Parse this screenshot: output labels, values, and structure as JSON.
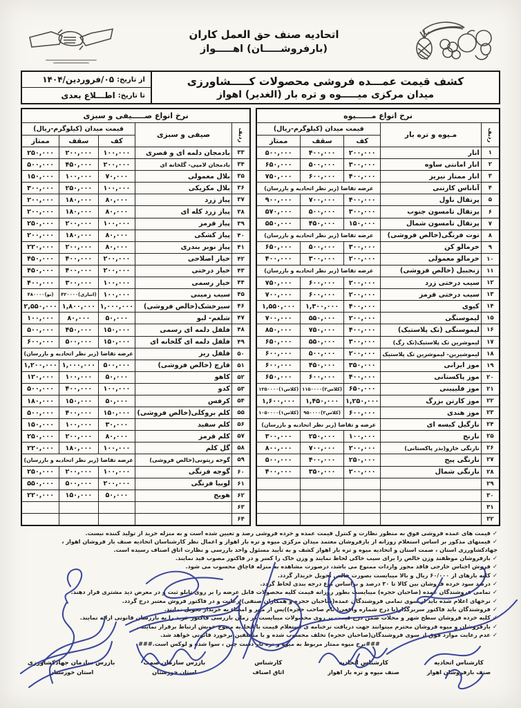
{
  "header": {
    "org_line1": "اتحادیه صنف حق العمل کاران",
    "org_line2": "(بارفروشـــــان) اهـــــواز"
  },
  "title_block": {
    "title_line1": "کشف قیمت عمـــده فروشی محصولات کـــــشاورزی",
    "title_line2": "میدان مرکزی میـــــوه و تره بار (الغدیر) اهواز",
    "date_from_label": "از تاریخ:",
    "date_from_value": "۰۵/فروردین/۱۴۰۴",
    "date_to_label": "تا تاریخ:",
    "date_to_value": "اطـــلاع بعدی"
  },
  "fruit_table": {
    "title": "نرخ انواع مــــــیوه",
    "col_row": "ردیف",
    "col_name": "مـیوه و تره بار",
    "col_price_group": "قیمت میدان (کیلوگرم-ریال)",
    "col_floor": "کف",
    "col_ceiling": "سقف",
    "col_premium": "ممتاز",
    "rows": [
      {
        "no": "۱",
        "name": "انار",
        "floor": "۲۰۰,۰۰۰",
        "ceiling": "۴۰۰,۰۰۰",
        "premium": "۵۰۰,۰۰۰"
      },
      {
        "no": "۲",
        "name": "انار امانتی ساوه",
        "floor": "۳۰۰,۰۰۰",
        "ceiling": "۵۰۰,۰۰۰",
        "premium": "۶۵۰,۰۰۰"
      },
      {
        "no": "۳",
        "name": "انار ممتاز نیریز",
        "floor": "۴۰۰,۰۰۰",
        "ceiling": "۶۰۰,۰۰۰",
        "premium": "۷۵۰,۰۰۰"
      },
      {
        "no": "۴",
        "name": "آناناس کارتنی",
        "span": "عرضه تقاضا (زیر نظر اتحادیه و بازرسان)"
      },
      {
        "no": "۵",
        "name": "پرتقال ناول",
        "floor": "۴۰۰,۰۰۰",
        "ceiling": "۷۰۰,۰۰۰",
        "premium": "۹۰۰,۰۰۰"
      },
      {
        "no": "۶",
        "name": "پرتقال تامسون جنوب",
        "floor": "۳۰۰,۰۰۰",
        "ceiling": "۵۰۰,۰۰۰",
        "premium": "۵۷۰,۰۰۰"
      },
      {
        "no": "۷",
        "name": "پرتقال تامسون شمال",
        "floor": "۱۵۰,۰۰۰",
        "ceiling": "۴۵۰,۰۰۰",
        "premium": "۵۵۰,۰۰۰"
      },
      {
        "no": "۸",
        "name": "توت فرنگی(خالص فروشی)",
        "span": "عرضه تقاضا (زیر نظر اتحادیه و بازرسان)"
      },
      {
        "no": "۹",
        "name": "خرمالو کن",
        "floor": "۳۰۰,۰۰۰",
        "ceiling": "۵۰۰,۰۰۰",
        "premium": "۶۵۰,۰۰۰"
      },
      {
        "no": "۱۰",
        "name": "خرمالو معمولی",
        "floor": "۲۰۰,۰۰۰",
        "ceiling": "۳۰۰,۰۰۰",
        "premium": "۴۰۰,۰۰۰"
      },
      {
        "no": "۱۱",
        "name": "زنجبیل (خالص فروشی)",
        "span": "عرضه تقاضا (زیر نظر اتحادیه و بازرسان)"
      },
      {
        "no": "۱۲",
        "name": "سیب درختی زرد",
        "floor": "۲۰۰,۰۰۰",
        "ceiling": "۶۰۰,۰۰۰",
        "premium": "۷۵۰,۰۰۰"
      },
      {
        "no": "۱۳",
        "name": "سیب درختی قرمز",
        "floor": "۲۰۰,۰۰۰",
        "ceiling": "۶۰۰,۰۰۰",
        "premium": "۷۰۰,۰۰۰"
      },
      {
        "no": "۱۴",
        "name": "کیوی",
        "floor": "۴۰۰,۰۰۰",
        "ceiling": "۱,۳۰۰,۰۰۰",
        "premium": "۱,۵۵۰,۰۰۰"
      },
      {
        "no": "۱۵",
        "name": "لیموسنگی",
        "floor": "۲۰۰,۰۰۰",
        "ceiling": "۵۵۰,۰۰۰",
        "premium": "۷۰۰,۰۰۰"
      },
      {
        "no": "۱۶",
        "name": "لیموسنگی (تک پلاستیک)",
        "floor": "۴۰۰,۰۰۰",
        "ceiling": "۷۵۰,۰۰۰",
        "premium": "۸۵۰,۰۰۰"
      },
      {
        "no": "۱۷",
        "name": "لیموشرین تک پلاستیک(تک رگ)",
        "floor": "۳۰۰,۰۰۰",
        "ceiling": "۵۵۰,۰۰۰",
        "premium": "۶۵۰,۰۰۰"
      },
      {
        "no": "۱۸",
        "name": "لیموشیرین- لیموشرین تک پلاستیک",
        "floor": "۲۰۰,۰۰۰",
        "ceiling": "۵۰۰,۰۰۰",
        "premium": "۶۰۰,۰۰۰"
      },
      {
        "no": "۱۹",
        "name": "موز ایرانی",
        "floor": "۳۵۰,۰۰۰",
        "ceiling": "۴۵۰,۰۰۰",
        "premium": "۶۰۰,۰۰۰"
      },
      {
        "no": "۲۰",
        "name": "موز پاکستانی",
        "floor": "۴۰۰,۰۰۰",
        "ceiling": "۶۰۰,۰۰۰",
        "premium": "۶۵۰,۰۰۰"
      },
      {
        "no": "۲۱",
        "name": "موز فلیپینی",
        "floor": "۶۵۰,۰۰۰",
        "ceiling": "(کلاس۲)۱۱۵۰۰۰۰",
        "premium": "(کلاس۱)۱۲۵۰۰۰۰"
      },
      {
        "no": "۲۲",
        "name": "موز کارتن بزرگ",
        "floor": "۱,۲۵۰,۰۰۰",
        "ceiling": "۱,۴۵۰,۰۰۰",
        "premium": "۱,۶۰۰,۰۰۰"
      },
      {
        "no": "۲۳",
        "name": "موز هندی",
        "floor": "۶۰۰,۰۰۰",
        "ceiling": "(کلاس۲)۹۵۰۰۰۰",
        "premium": "(کلاس۱)۱۰۵۰۰۰۰"
      },
      {
        "no": "۲۴",
        "name": "نارگیل کیسه ای",
        "span": "عرضه و تقاضا (زیر نظر اتحادیه و بازرسان)"
      },
      {
        "no": "۲۵",
        "name": "نارنج",
        "floor": "۱۰۰,۰۰۰",
        "ceiling": "۲۵۰,۰۰۰",
        "premium": "۳۰۰,۰۰۰"
      },
      {
        "no": "۲۶",
        "name": "نارنگی خارو(بذر پاکستانی)",
        "floor": "۲۰۰,۰۰۰",
        "ceiling": "۷۰۰,۰۰۰",
        "premium": "۸۰۰,۰۰۰"
      },
      {
        "no": "۲۷",
        "name": "نارنگی پیج",
        "floor": "۲۵۰,۰۰۰",
        "ceiling": "۴۰۰,۰۰۰",
        "premium": "۵۰۰,۰۰۰"
      },
      {
        "no": "۲۸",
        "name": "نارنگی شمال",
        "floor": "۲۰۰,۰۰۰",
        "ceiling": "۳۵۰,۰۰۰",
        "premium": "۴۰۰,۰۰۰"
      },
      {
        "no": "۲۹",
        "name": "",
        "floor": "",
        "ceiling": "",
        "premium": ""
      },
      {
        "no": "۳۰",
        "name": "",
        "floor": "",
        "ceiling": "",
        "premium": ""
      },
      {
        "no": "۳۱",
        "name": "",
        "floor": "",
        "ceiling": "",
        "premium": ""
      },
      {
        "no": "۳۲",
        "name": "",
        "floor": "",
        "ceiling": "",
        "premium": ""
      }
    ]
  },
  "veg_table": {
    "title": "نرخ انواع صـــــیفی و سبزی",
    "col_row": "ردیف",
    "col_name": "صیفی و سبزی",
    "col_price_group": "قیمت میدان (کیلوگرم-ریال)",
    "col_floor": "کف",
    "col_ceiling": "سقف",
    "col_premium": "ممتاز",
    "rows": [
      {
        "no": "۳۳",
        "name": "بادمجان دلمه ای و قصری",
        "floor": "۱۰۰,۰۰۰",
        "ceiling": "۲۰۰,۰۰۰",
        "premium": "۲۵۰,۰۰۰"
      },
      {
        "no": "۳۴",
        "name": "بادمجان لامپی- گلخانه ای",
        "floor": "۲۰۰,۰۰۰",
        "ceiling": "۴۵۰,۰۰۰",
        "premium": "۵۰۰,۰۰۰"
      },
      {
        "no": "۳۵",
        "name": "بلال معمولی",
        "floor": "۷۰,۰۰۰",
        "ceiling": "۱۰۰,۰۰۰",
        "premium": "۱۵۰,۰۰۰"
      },
      {
        "no": "۳۶",
        "name": "بلال مکزیکی",
        "floor": "۱۰۰,۰۰۰",
        "ceiling": "۲۵۰,۰۰۰",
        "premium": "۳۰۰,۰۰۰"
      },
      {
        "no": "۳۷",
        "name": "پیاز زرد",
        "floor": "۸۰,۰۰۰",
        "ceiling": "۱۸۰,۰۰۰",
        "premium": "۲۰۰,۰۰۰"
      },
      {
        "no": "۳۸",
        "name": "پیاز زرد کله ای",
        "floor": "۸۰,۰۰۰",
        "ceiling": "۱۸۰,۰۰۰",
        "premium": "۲۰۰,۰۰۰"
      },
      {
        "no": "۳۹",
        "name": "پیاز قرمز",
        "floor": "۱۰۰,۰۰۰",
        "ceiling": "۲۰۰,۰۰۰",
        "premium": "۲۵۰,۰۰۰"
      },
      {
        "no": "۴۰",
        "name": "پیاز کشکی",
        "floor": "۸۰,۰۰۰",
        "ceiling": "۱۸۰,۰۰۰",
        "premium": "۲۰۰,۰۰۰"
      },
      {
        "no": "۴۱",
        "name": "پیاز نوبر بندری",
        "floor": "۸۰,۰۰۰",
        "ceiling": "۲۰۰,۰۰۰",
        "premium": "۲۲۰,۰۰۰"
      },
      {
        "no": "۴۲",
        "name": "خیار اصلاحی",
        "floor": "۲۰۰,۰۰۰",
        "ceiling": "۴۰۰,۰۰۰",
        "premium": "۴۵۰,۰۰۰"
      },
      {
        "no": "۴۳",
        "name": "خیار درختی",
        "floor": "۲۰۰,۰۰۰",
        "ceiling": "۴۰۰,۰۰۰",
        "premium": "۴۵۰,۰۰۰"
      },
      {
        "no": "۴۴",
        "name": "خیار رسمی",
        "floor": "۱۰۰,۰۰۰",
        "ceiling": "۳۰۰,۰۰۰",
        "premium": "۴۰۰,۰۰۰"
      },
      {
        "no": "۴۵",
        "name": "سیب زمینی",
        "floor": "۱۰۰,۰۰۰",
        "ceiling": "(انباری)۴۲۰۰۰۰",
        "premium": "(نو)۴۸۰۰۰۰"
      },
      {
        "no": "۴۶",
        "name": "سیرخشک(خالص فروشی)",
        "floor": "۱,۰۰۰,۰۰۰",
        "ceiling": "۱,۸۰۰,۰۰۰",
        "premium": "۲,۵۵۰,۰۰۰"
      },
      {
        "no": "۴۷",
        "name": "شلغم- لبو",
        "floor": "۵۰,۰۰۰",
        "ceiling": "۸۰,۰۰۰",
        "premium": "۱۰۰,۰۰۰"
      },
      {
        "no": "۴۸",
        "name": "فلفل دلمه ای رسمی",
        "floor": "۱۵۰,۰۰۰",
        "ceiling": "۴۵۰,۰۰۰",
        "premium": "۵۰۰,۰۰۰"
      },
      {
        "no": "۴۹",
        "name": "فلفل دلمه ای گلخانه ای",
        "floor": "۱۵۰,۰۰۰",
        "ceiling": "۵۰۰,۰۰۰",
        "premium": "۶۰۰,۰۰۰"
      },
      {
        "no": "۵۰",
        "name": "فلفل ریز",
        "span": "عرضه تقاضا (زیر نظر اتحادیه و بازرسان)"
      },
      {
        "no": "۵۱",
        "name": "قارچ (خالص فروشی)",
        "floor": "۵۰۰,۰۰۰",
        "ceiling": "۱,۰۰۰,۰۰۰",
        "premium": "۱,۲۰۰,۰۰۰"
      },
      {
        "no": "۵۲",
        "name": "کاهو",
        "floor": "۵۰,۰۰۰",
        "ceiling": "۱۰۰,۰۰۰",
        "premium": "۱۲۰,۰۰۰"
      },
      {
        "no": "۵۳",
        "name": "کدو",
        "floor": "۱۰۰,۰۰۰",
        "ceiling": "۴۰۰,۰۰۰",
        "premium": "۵۰۰,۰۰۰"
      },
      {
        "no": "۵۴",
        "name": "کرفس",
        "floor": "۵۰,۰۰۰",
        "ceiling": "۱۵۰,۰۰۰",
        "premium": "۱۸۰,۰۰۰"
      },
      {
        "no": "۵۵",
        "name": "کلم بروکلی(خالص فروشی)",
        "floor": "۱۵۰,۰۰۰",
        "ceiling": "۴۰۰,۰۰۰",
        "premium": "۵۰۰,۰۰۰"
      },
      {
        "no": "۵۶",
        "name": "کلم سفید",
        "floor": "۳۰,۰۰۰",
        "ceiling": "۱۰۰,۰۰۰",
        "premium": "۱۵۰,۰۰۰"
      },
      {
        "no": "۵۷",
        "name": "کلم قرمز",
        "floor": "۸۰,۰۰۰",
        "ceiling": "۲۰۰,۰۰۰",
        "premium": "۲۵۰,۰۰۰"
      },
      {
        "no": "۵۸",
        "name": "گل کلم",
        "floor": "۱۰۰,۰۰۰",
        "ceiling": "۱۸۰,۰۰۰",
        "premium": "۲۲۰,۰۰۰"
      },
      {
        "no": "۵۹",
        "name": "گوجه زیتونی(خالص فروشی)",
        "span": "عرضه تقاضا (زیر نظر اتحادیه و بازرسان)"
      },
      {
        "no": "۶۰",
        "name": "گوجه فرنگی",
        "floor": "۱۰۰,۰۰۰",
        "ceiling": "۲۰۰,۰۰۰",
        "premium": "۲۵۰,۰۰۰"
      },
      {
        "no": "۶۱",
        "name": "لوبیا فرنگی",
        "floor": "۲۰۰,۰۰۰",
        "ceiling": "۵۰۰,۰۰۰",
        "premium": "۵۵۰,۰۰۰"
      },
      {
        "no": "۶۲",
        "name": "هویج",
        "floor": "۵۰,۰۰۰",
        "ceiling": "۱۵۰,۰۰۰",
        "premium": "۲۲۰,۰۰۰"
      },
      {
        "no": "۶۳",
        "name": "",
        "floor": "",
        "ceiling": "",
        "premium": ""
      },
      {
        "no": "۶۴",
        "name": "",
        "floor": "",
        "ceiling": "",
        "premium": ""
      }
    ]
  },
  "notes": [
    {
      "b": "✓",
      "t": "قیمت های عمده فروشی فوق به منظور نظارت و کنترل قیمت عمده و خرده فروشی رصد و تعیین شده است و به منزله خرید از تولید کننده نیست."
    },
    {
      "b": "✓",
      "t": "قیمتهای مذکور بر اساس استعلام روزانه از بارفروشان معتمد میدان مرکزی میوه و تره بار اهواز و اعمال نظر کارشناسان اتحادیه صنف بار فروشان اهواز ، جهادکشاورزی استان ، صمت استان و اتحادیه میوه و تره بار اهواز کشف و به تأیید مسئول واحد بازرسی و نظارت اتاق اصناف رسیده است."
    },
    {
      "b": "✓",
      "t": "بارفروشان موظفند وزن خالص را برای سیب خاکی لحاظ نمایند و وزن خاک را کسر و در فاکتور مصوب قید نمایند."
    },
    {
      "b": "✓",
      "t": "فروش اجناس خارجی فاقد مجوز واردات ممنوع می باشد، درصورت مشاهده به منزله قاچاق محسوب می شود."
    },
    {
      "b": "✓",
      "t": "کلیه بارهای از ۶۰/۰۰۰ ریال و بالا میبایست بصورت خالص تحویل خریدار گردد."
    },
    {
      "b": "✓",
      "t": "درصد سود خرده فروشان بین کالا تا ۳۰ درصد و براساس نوع درجه بندی لحاظ گردد."
    },
    {
      "b": "✓",
      "t": "تمامی فروشندگان عمده (صاحبان حجره) میبایست بطور روزانه قیمت کلیه محصولات قابل عرضه را بر روی تابلو ثبت و در معرض دید مشتری قرار دهند."
    },
    {
      "b": "✓",
      "t": "نرخهای اعلام شده باید از سوی تمامی فروشندگان عمده(صاحبان حجره و همکاران صنفی) رعایت و در فاکتور فروش معتبر درج گردد."
    },
    {
      "b": "✓",
      "t": "فروشندگان باید فاکتور سربرگدار(با درج شماره واقعی( نام صاحب حجره))پس از مهر و امضاء به خریدار تحویل نمایند."
    },
    {
      "b": "✓",
      "t": "کلیه خرده فروشان سطح شهر و محلات ضمن درج قیمت بر روی محصولات میبایست در زمان بازرسی فاکتور خرید را به بازرسان قانونی ارائه نمایند."
    },
    {
      "b": "✓",
      "t": "بارفروشان و میوه فروشان محترم میتوانند جهت دریافت نرخنامه ی استعلام قیمت با اتحادیه متبوع خویش ارتباط برقرار نمایند ."
    },
    {
      "b": "✓",
      "t": "عدم رعایت موارد فوق از سوی فروشندگان(صاحبان حجره) تخلف محسوب شده و با متخلفین برخورد قانونی خواهد شد."
    },
    {
      "b": "",
      "t": "###نرخ میوه ممتاز مربوط به میوه و تره بار دست چین ، سوا شده و لوکس است.###"
    }
  ],
  "signatures": [
    {
      "line1": "کارشناس اتحادیه",
      "line2": "صنف بارفروشان اهواز"
    },
    {
      "line1": "کارشناس اتحادیه",
      "line2": "صنف میوه و تره بار اهواز"
    },
    {
      "line1": "کارشناس",
      "line2": "اتاق اصناف"
    },
    {
      "line1": "بازرس سازمان صمت",
      "line2": "استان خوزستان"
    },
    {
      "line1": "بازرس سازمان جهادکشاورزی",
      "line2": "استان خوزستان"
    }
  ]
}
